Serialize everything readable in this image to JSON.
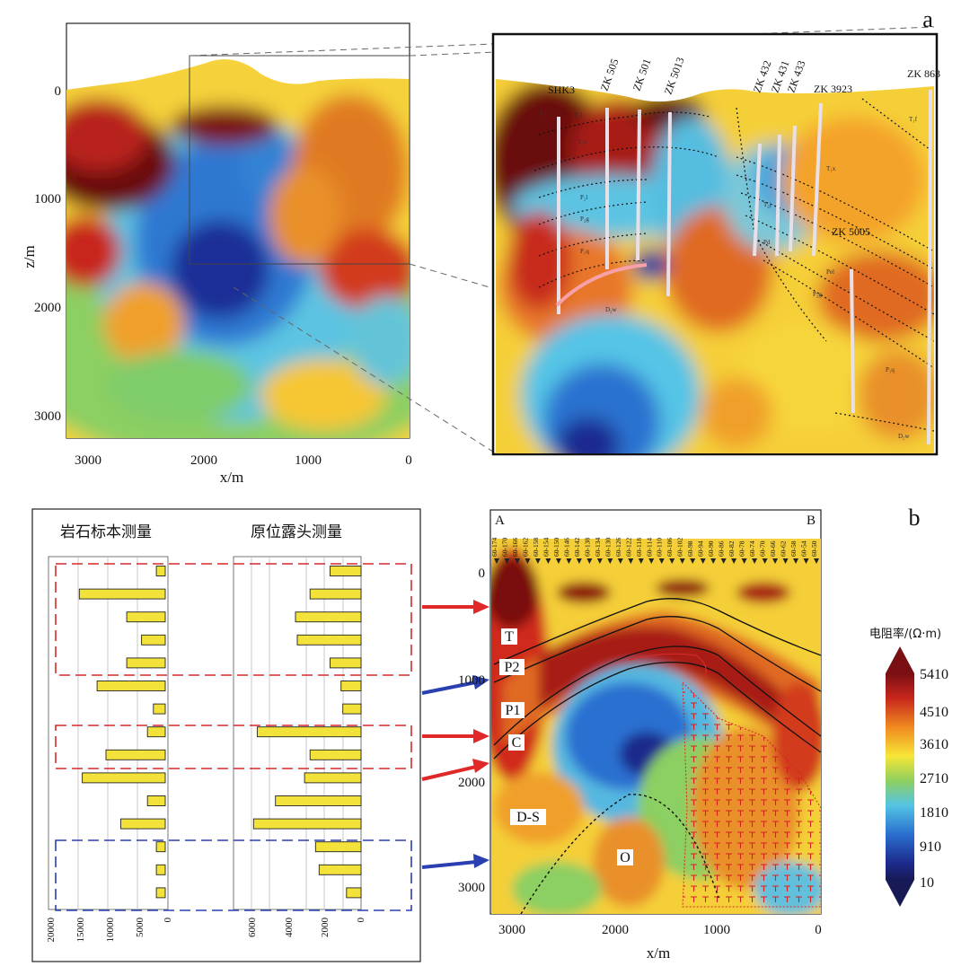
{
  "panel_a": {
    "panel_label": "a",
    "x_axis": {
      "label": "x/m",
      "ticks": [
        "3000",
        "2000",
        "1000",
        "0"
      ]
    },
    "z_axis": {
      "label": "z/m",
      "ticks": [
        "0",
        "1000",
        "2000",
        "3000"
      ]
    },
    "wells": [
      "SHK3",
      "ZK 505",
      "ZK 501",
      "ZK 5013",
      "ZK 432",
      "ZK 431",
      "ZK 433",
      "ZK 3923",
      "ZK 863",
      "ZK 5005"
    ],
    "strata": [
      "T₂j",
      "T₂l",
      "T₁x",
      "P₂l",
      "P₂g",
      "P₂d",
      "P₁q",
      "D₂w",
      "T₁f",
      "Pel",
      "Pd"
    ]
  },
  "panel_b": {
    "panel_label": "b",
    "corner_left": "A",
    "corner_right": "B",
    "x_axis": {
      "label": "x/m",
      "ticks": [
        "3000",
        "2000",
        "1000",
        "0"
      ]
    },
    "z_axis": {
      "ticks": [
        "0",
        "1000",
        "2000",
        "3000"
      ]
    },
    "stations": [
      "60-174",
      "60-170",
      "60-166",
      "60-162",
      "60-158",
      "60-154",
      "60-150",
      "60-146",
      "60-142",
      "60-138",
      "60-134",
      "60-130",
      "60-126",
      "60-122",
      "60-118",
      "60-114",
      "60-110",
      "60-106",
      "60-102",
      "60-98",
      "60-94",
      "60-90",
      "60-86",
      "60-82",
      "60-78",
      "60-74",
      "60-70",
      "60-66",
      "60-62",
      "60-58",
      "60-54",
      "60-50"
    ],
    "strata_labels": [
      "T",
      "P2",
      "P1",
      "C",
      "D-S",
      "O"
    ]
  },
  "histogram": {
    "left_title": "岩石标本测量",
    "right_title": "原位露头测量",
    "left_ticks": [
      "20000",
      "15000",
      "10000",
      "5000",
      "0"
    ],
    "right_ticks": [
      "6000",
      "4000",
      "2000",
      "0"
    ],
    "left_values": [
      1500,
      14500,
      6500,
      4000,
      6500,
      11500,
      2000,
      3000,
      10000,
      14000,
      3000,
      7500,
      1500,
      1500,
      1500
    ],
    "right_values": [
      1700,
      2800,
      3600,
      3500,
      1700,
      1100,
      1000,
      5700,
      2800,
      3100,
      4700,
      5900,
      2500,
      2300,
      800
    ]
  },
  "colorbar": {
    "title": "电阻率/(Ω·m)",
    "ticks": [
      "5410",
      "4510",
      "3610",
      "2710",
      "1810",
      "910",
      "10"
    ]
  }
}
